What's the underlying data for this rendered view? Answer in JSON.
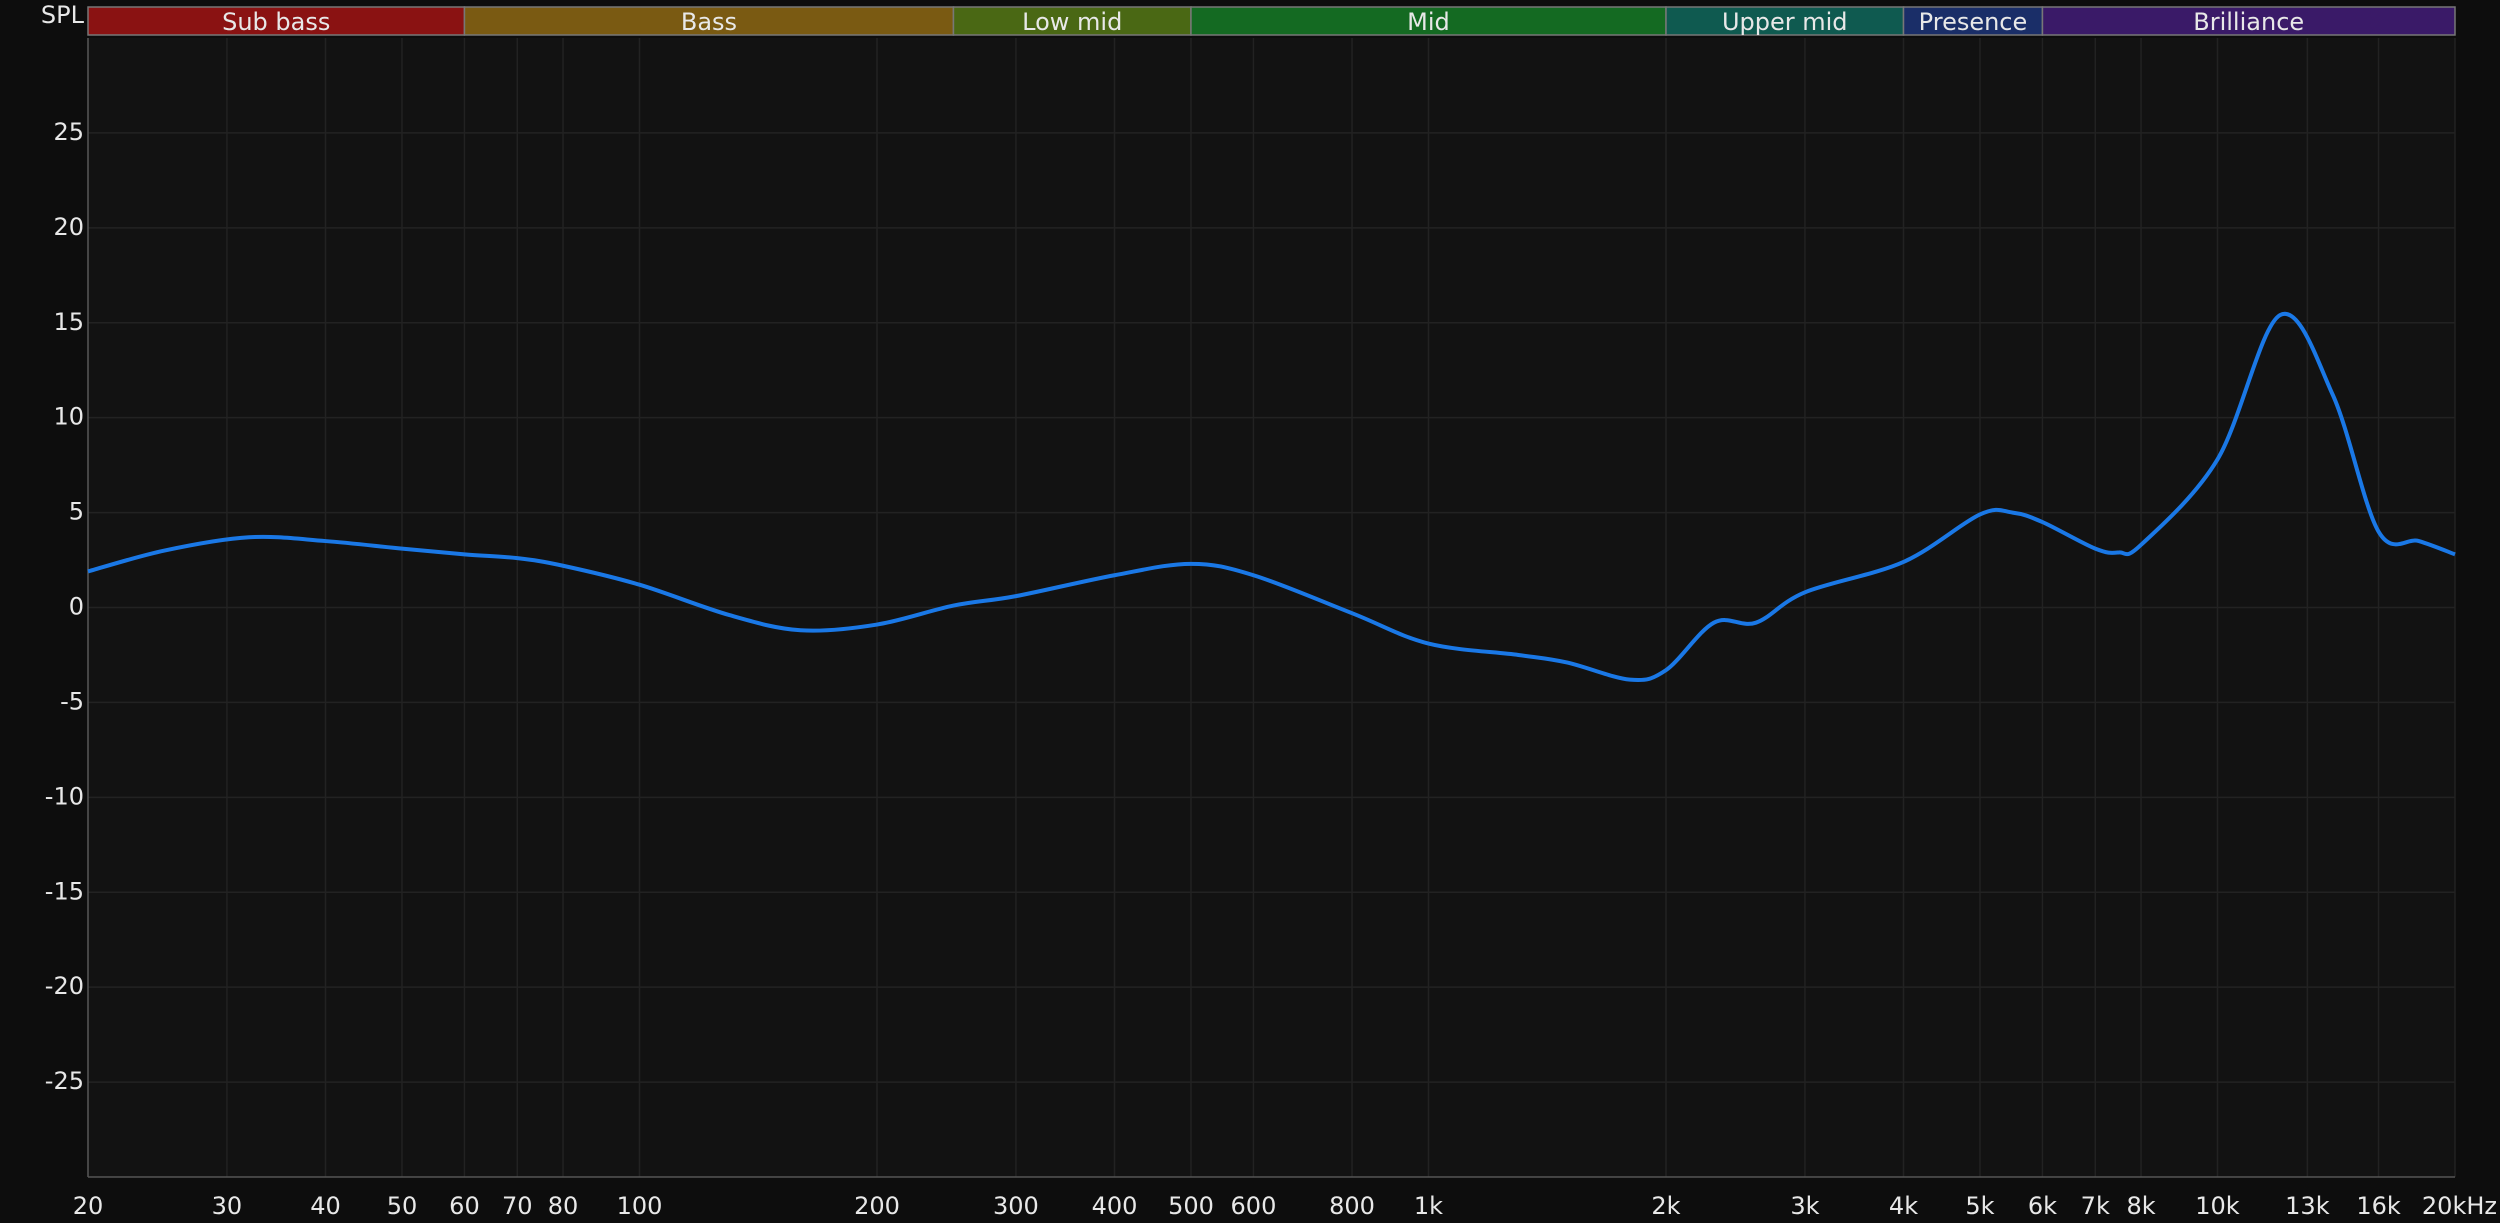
{
  "chart_data": {
    "type": "line",
    "ylabel": "SPL",
    "xscale": "log",
    "grid": true,
    "xlim": [
      20,
      20000
    ],
    "ylim": [
      -30,
      30
    ],
    "yticks": [
      -25,
      -20,
      -15,
      -10,
      -5,
      0,
      5,
      10,
      15,
      20,
      25
    ],
    "xticks": [
      20,
      30,
      40,
      50,
      60,
      70,
      80,
      100,
      200,
      300,
      400,
      500,
      600,
      800,
      {
        "value": 1000,
        "label": "1k"
      },
      {
        "value": 2000,
        "label": "2k"
      },
      {
        "value": 3000,
        "label": "3k"
      },
      {
        "value": 4000,
        "label": "4k"
      },
      {
        "value": 5000,
        "label": "5k"
      },
      {
        "value": 6000,
        "label": "6k"
      },
      {
        "value": 7000,
        "label": "7k"
      },
      {
        "value": 8000,
        "label": "8k"
      },
      {
        "value": 10000,
        "label": "10k"
      },
      {
        "value": 13000,
        "label": "13k"
      },
      {
        "value": 16000,
        "label": "16k"
      },
      {
        "value": 20000,
        "label": "20kHz"
      }
    ],
    "bands": [
      {
        "name": "Sub bass",
        "start": 20,
        "end": 60,
        "color": "#8a1212",
        "text_color": "#e6b0b0"
      },
      {
        "name": "Bass",
        "start": 60,
        "end": 250,
        "color": "#7a5a12",
        "text_color": "#e3d0a0"
      },
      {
        "name": "Low mid",
        "start": 250,
        "end": 500,
        "color": "#4a6814",
        "text_color": "#d0e0a8"
      },
      {
        "name": "Mid",
        "start": 500,
        "end": 2000,
        "color": "#146a22",
        "text_color": "#b8e0bc"
      },
      {
        "name": "Upper mid",
        "start": 2000,
        "end": 4000,
        "color": "#0f5a50",
        "text_color": "#b0dcd4"
      },
      {
        "name": "Presence",
        "start": 4000,
        "end": 6000,
        "color": "#1a2e68",
        "text_color": "#c0ccf0"
      },
      {
        "name": "Brilliance",
        "start": 6000,
        "end": 20000,
        "color": "#3a1a68",
        "text_color": "#d4c4ee"
      }
    ],
    "series": [
      {
        "color": "#1a78e6",
        "x": [
          20,
          25,
          32,
          40,
          50,
          60,
          70,
          80,
          100,
          130,
          160,
          200,
          250,
          300,
          400,
          500,
          600,
          800,
          1000,
          1300,
          1500,
          1800,
          2000,
          2300,
          2600,
          3000,
          4000,
          5000,
          5500,
          6000,
          7000,
          7500,
          8000,
          10000,
          12000,
          14000,
          16000,
          18000,
          20000
        ],
        "values": [
          1.9,
          3.0,
          3.7,
          3.5,
          3.1,
          2.8,
          2.6,
          2.2,
          1.2,
          -0.4,
          -1.2,
          -0.9,
          0.1,
          0.6,
          1.7,
          2.3,
          1.7,
          -0.3,
          -1.9,
          -2.5,
          -2.9,
          -3.8,
          -3.3,
          -0.8,
          -0.8,
          0.8,
          2.4,
          4.9,
          5.0,
          4.5,
          3.1,
          2.9,
          3.3,
          7.8,
          15.4,
          11.2,
          4.0,
          3.5,
          2.8
        ]
      }
    ]
  }
}
